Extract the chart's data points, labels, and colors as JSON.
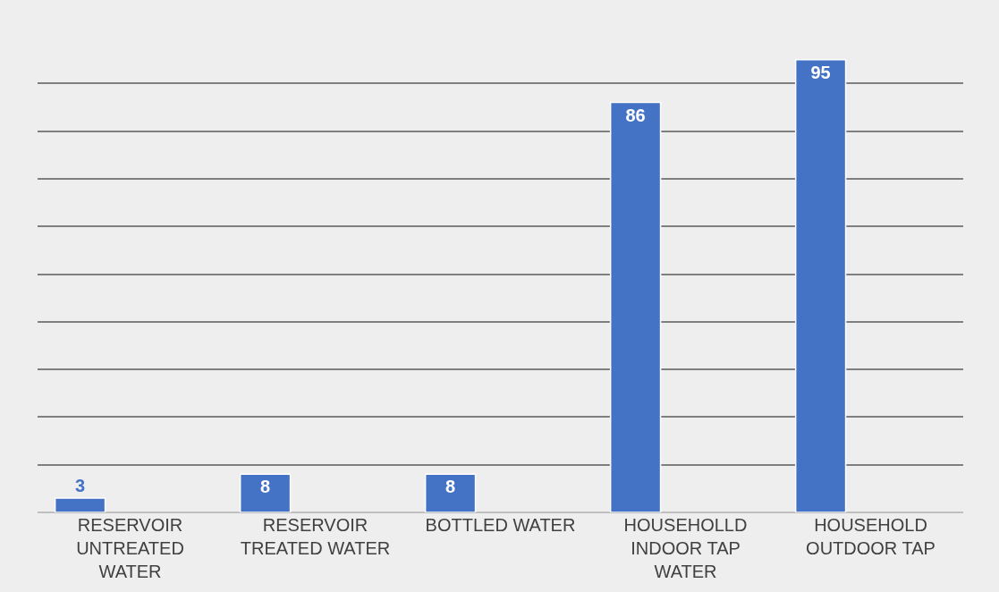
{
  "chart_data": {
    "type": "bar",
    "categories": [
      "RESERVOIR UNTREATED WATER",
      "RESERVOIR TREATED WATER",
      "BOTTLED WATER",
      "HOUSEHOLLD INDOOR TAP WATER",
      "HOUSEHOLD OUTDOOR TAP"
    ],
    "values": [
      3,
      8,
      8,
      86,
      95
    ],
    "color": "#4472c4",
    "tick_labels": "x",
    "grid": "y",
    "data_labels": true
  }
}
